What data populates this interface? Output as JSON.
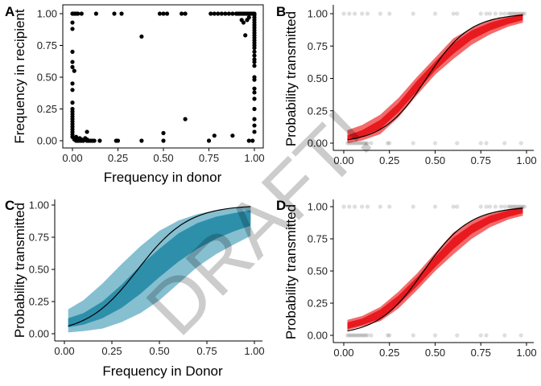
{
  "watermark": "DRAFT!",
  "colors": {
    "axis": "#000000",
    "points": "#000000",
    "red_outer": "#f26b6b",
    "red_inner": "#e8191f",
    "blue_outer": "#86bfd0",
    "blue_inner": "#2e8fab",
    "fit_line": "#000000"
  },
  "chart_data": [
    {
      "panel": "A",
      "type": "scatter",
      "xlabel": "Frequency in donor",
      "ylabel": "Frequency in recipient",
      "xlim": [
        0,
        1
      ],
      "ylim": [
        0,
        1
      ],
      "xticks": [
        "0.00",
        "0.25",
        "0.50",
        "0.75",
        "1.00"
      ],
      "yticks": [
        "0.00",
        "0.25",
        "0.50",
        "0.75",
        "1.00"
      ],
      "grid": false,
      "points": [
        [
          0.0,
          1.0
        ],
        [
          0.01,
          1.0
        ],
        [
          0.02,
          1.0
        ],
        [
          0.03,
          1.0
        ],
        [
          0.05,
          1.0
        ],
        [
          0.13,
          1.0
        ],
        [
          0.23,
          1.0
        ],
        [
          0.27,
          1.0
        ],
        [
          0.48,
          1.0
        ],
        [
          0.5,
          1.0
        ],
        [
          0.52,
          1.0
        ],
        [
          0.6,
          1.0
        ],
        [
          0.62,
          1.0
        ],
        [
          0.76,
          1.0
        ],
        [
          0.78,
          1.0
        ],
        [
          0.8,
          1.0
        ],
        [
          0.82,
          1.0
        ],
        [
          0.84,
          1.0
        ],
        [
          0.86,
          1.0
        ],
        [
          0.88,
          1.0
        ],
        [
          0.9,
          1.0
        ],
        [
          0.91,
          1.0
        ],
        [
          0.92,
          1.0
        ],
        [
          0.93,
          1.0
        ],
        [
          0.94,
          1.0
        ],
        [
          0.95,
          1.0
        ],
        [
          0.96,
          1.0
        ],
        [
          0.97,
          1.0
        ],
        [
          0.98,
          1.0
        ],
        [
          0.99,
          1.0
        ],
        [
          1.0,
          1.0
        ],
        [
          0.38,
          0.82
        ],
        [
          0.94,
          0.93
        ],
        [
          0.93,
          0.95
        ],
        [
          0.95,
          0.83
        ],
        [
          0.96,
          0.95
        ],
        [
          0.97,
          0.97
        ],
        [
          0.0,
          0.93
        ],
        [
          0.0,
          0.88
        ],
        [
          0.0,
          0.7
        ],
        [
          0.0,
          0.62
        ],
        [
          0.0,
          0.58
        ],
        [
          0.01,
          0.55
        ],
        [
          0.0,
          0.45
        ],
        [
          0.0,
          0.4
        ],
        [
          0.0,
          0.3
        ],
        [
          0.0,
          0.25
        ],
        [
          0.0,
          0.23
        ],
        [
          0.0,
          0.21
        ],
        [
          0.0,
          0.19
        ],
        [
          0.0,
          0.17
        ],
        [
          0.0,
          0.15
        ],
        [
          0.0,
          0.13
        ],
        [
          0.0,
          0.11
        ],
        [
          0.0,
          0.09
        ],
        [
          0.0,
          0.07
        ],
        [
          0.0,
          0.05
        ],
        [
          0.0,
          0.03
        ],
        [
          0.01,
          0.02
        ],
        [
          0.01,
          0.01
        ],
        [
          0.02,
          0.0
        ],
        [
          0.02,
          0.03
        ],
        [
          0.03,
          0.01
        ],
        [
          0.03,
          0.0
        ],
        [
          0.04,
          0.0
        ],
        [
          0.04,
          0.02
        ],
        [
          0.05,
          0.0
        ],
        [
          0.05,
          0.01
        ],
        [
          0.06,
          0.0
        ],
        [
          0.07,
          0.02
        ],
        [
          0.08,
          0.0
        ],
        [
          0.08,
          0.01
        ],
        [
          0.09,
          0.0
        ],
        [
          0.1,
          0.0
        ],
        [
          0.11,
          0.0
        ],
        [
          0.12,
          0.0
        ],
        [
          0.15,
          0.0
        ],
        [
          0.08,
          0.07
        ],
        [
          0.25,
          0.0
        ],
        [
          0.24,
          0.0
        ],
        [
          0.38,
          0.0
        ],
        [
          0.5,
          0.0
        ],
        [
          0.5,
          0.06
        ],
        [
          0.62,
          0.17
        ],
        [
          0.75,
          0.0
        ],
        [
          0.78,
          0.04
        ],
        [
          0.88,
          0.04
        ],
        [
          0.97,
          0.0
        ],
        [
          1.0,
          0.99
        ],
        [
          1.0,
          0.97
        ],
        [
          1.0,
          0.95
        ],
        [
          1.0,
          0.93
        ],
        [
          1.0,
          0.91
        ],
        [
          1.0,
          0.89
        ],
        [
          1.0,
          0.87
        ],
        [
          1.0,
          0.85
        ],
        [
          1.0,
          0.83
        ],
        [
          1.0,
          0.81
        ],
        [
          1.0,
          0.79
        ],
        [
          1.0,
          0.77
        ],
        [
          1.0,
          0.75
        ],
        [
          1.0,
          0.73
        ],
        [
          1.0,
          0.7
        ],
        [
          1.0,
          0.67
        ],
        [
          1.0,
          0.64
        ],
        [
          1.0,
          0.62
        ],
        [
          1.0,
          0.59
        ],
        [
          1.0,
          0.5
        ],
        [
          1.0,
          0.48
        ],
        [
          1.0,
          0.41
        ],
        [
          1.0,
          0.38
        ],
        [
          1.0,
          0.33
        ],
        [
          1.0,
          0.25
        ],
        [
          1.0,
          0.17
        ],
        [
          1.0,
          0.12
        ],
        [
          1.0,
          0.07
        ],
        [
          0.99,
          0.0
        ]
      ]
    },
    {
      "panel": "B",
      "type": "line",
      "xlabel": "",
      "ylabel": "Probability transmitted",
      "xlim": [
        0,
        1
      ],
      "ylim": [
        0,
        1
      ],
      "xticks": [
        "0.00",
        "0.25",
        "0.50",
        "0.75",
        "1.00"
      ],
      "yticks": [
        "0.00",
        "0.25",
        "0.50",
        "0.75",
        "1.00"
      ],
      "grid": false,
      "fit": {
        "intercept": -3.8,
        "slope": 8.4
      },
      "band_inner": {
        "x": [
          0.02,
          0.1,
          0.2,
          0.3,
          0.4,
          0.5,
          0.6,
          0.7,
          0.8,
          0.9,
          0.98
        ],
        "lo": [
          0.02,
          0.05,
          0.11,
          0.24,
          0.4,
          0.56,
          0.69,
          0.8,
          0.87,
          0.92,
          0.95
        ],
        "hi": [
          0.06,
          0.1,
          0.18,
          0.31,
          0.48,
          0.63,
          0.77,
          0.87,
          0.93,
          0.97,
          0.99
        ]
      },
      "band_outer": {
        "x": [
          0.02,
          0.1,
          0.2,
          0.3,
          0.4,
          0.5,
          0.6,
          0.7,
          0.8,
          0.9,
          0.98
        ],
        "lo": [
          0.0,
          0.02,
          0.07,
          0.2,
          0.37,
          0.53,
          0.65,
          0.76,
          0.84,
          0.9,
          0.93
        ],
        "hi": [
          0.1,
          0.14,
          0.22,
          0.35,
          0.51,
          0.66,
          0.81,
          0.89,
          0.95,
          0.98,
          1.0
        ]
      },
      "observed_x_at_1": [
        0.0,
        0.03,
        0.06,
        0.1,
        0.13,
        0.2,
        0.25,
        0.38,
        0.5,
        0.6,
        0.62,
        0.75,
        0.78,
        0.8,
        0.83,
        0.86,
        0.88,
        0.9,
        0.91,
        0.92,
        0.93,
        0.94,
        0.95,
        0.96,
        0.97,
        0.98,
        0.99
      ],
      "observed_x_at_0": [
        0.02,
        0.03,
        0.04,
        0.05,
        0.06,
        0.07,
        0.08,
        0.09,
        0.1,
        0.11,
        0.12,
        0.13,
        0.15,
        0.24,
        0.25,
        0.38,
        0.5,
        0.62,
        0.75,
        0.78,
        0.88,
        0.97
      ]
    },
    {
      "panel": "C",
      "type": "line",
      "xlabel": "Frequency in Donor",
      "ylabel": "Probability transmitted",
      "xlim": [
        0,
        1
      ],
      "ylim": [
        0,
        1
      ],
      "xticks": [
        "0.00",
        "0.25",
        "0.50",
        "0.75",
        "1.00"
      ],
      "yticks": [
        "0.00",
        "0.25",
        "0.50",
        "0.75",
        "1.00"
      ],
      "grid": false,
      "fit": {
        "intercept": -2.9,
        "slope": 7.5
      },
      "band_inner": {
        "x": [
          0.02,
          0.1,
          0.2,
          0.3,
          0.4,
          0.5,
          0.6,
          0.7,
          0.8,
          0.9,
          0.98
        ],
        "lo": [
          0.05,
          0.07,
          0.12,
          0.2,
          0.31,
          0.44,
          0.56,
          0.66,
          0.74,
          0.8,
          0.84
        ],
        "hi": [
          0.12,
          0.16,
          0.25,
          0.38,
          0.53,
          0.66,
          0.78,
          0.86,
          0.91,
          0.94,
          0.96
        ]
      },
      "band_outer": {
        "x": [
          0.02,
          0.1,
          0.2,
          0.3,
          0.4,
          0.5,
          0.6,
          0.7,
          0.8,
          0.9,
          0.98
        ],
        "lo": [
          0.01,
          0.02,
          0.04,
          0.09,
          0.16,
          0.26,
          0.39,
          0.52,
          0.62,
          0.7,
          0.76
        ],
        "hi": [
          0.19,
          0.26,
          0.39,
          0.54,
          0.68,
          0.8,
          0.88,
          0.93,
          0.96,
          0.98,
          0.99
        ]
      }
    },
    {
      "panel": "D",
      "type": "line",
      "xlabel": "",
      "ylabel": "Probability transmitted",
      "xlim": [
        0,
        1
      ],
      "ylim": [
        0,
        1
      ],
      "xticks": [
        "0.00",
        "0.25",
        "0.50",
        "0.75",
        "1.00"
      ],
      "yticks": [
        "0.00",
        "0.25",
        "0.50",
        "0.75",
        "1.00"
      ],
      "grid": false,
      "fit": {
        "intercept": -3.5,
        "slope": 8.0
      },
      "band_inner": {
        "x": [
          0.02,
          0.1,
          0.2,
          0.3,
          0.4,
          0.5,
          0.6,
          0.7,
          0.8,
          0.9,
          0.98
        ],
        "lo": [
          0.05,
          0.08,
          0.13,
          0.24,
          0.38,
          0.53,
          0.67,
          0.79,
          0.87,
          0.92,
          0.95
        ],
        "hi": [
          0.1,
          0.13,
          0.2,
          0.31,
          0.45,
          0.61,
          0.76,
          0.86,
          0.93,
          0.97,
          0.99
        ]
      },
      "band_outer": {
        "x": [
          0.02,
          0.1,
          0.2,
          0.3,
          0.4,
          0.5,
          0.6,
          0.7,
          0.8,
          0.9,
          0.98
        ],
        "lo": [
          0.04,
          0.07,
          0.11,
          0.21,
          0.35,
          0.5,
          0.63,
          0.75,
          0.84,
          0.9,
          0.93
        ],
        "hi": [
          0.12,
          0.15,
          0.22,
          0.34,
          0.48,
          0.64,
          0.8,
          0.89,
          0.95,
          0.98,
          1.0
        ]
      },
      "observed_x_at_1": [
        0.0,
        0.03,
        0.06,
        0.1,
        0.13,
        0.2,
        0.25,
        0.38,
        0.5,
        0.6,
        0.62,
        0.75,
        0.78,
        0.8,
        0.83,
        0.86,
        0.88,
        0.9,
        0.91,
        0.92,
        0.93,
        0.94,
        0.95,
        0.96,
        0.97,
        0.98,
        0.99
      ],
      "observed_x_at_0": [
        0.02,
        0.03,
        0.04,
        0.05,
        0.06,
        0.07,
        0.08,
        0.09,
        0.1,
        0.11,
        0.12,
        0.13,
        0.15,
        0.24,
        0.25,
        0.38,
        0.5,
        0.62,
        0.75,
        0.78,
        0.88,
        0.97
      ]
    }
  ]
}
